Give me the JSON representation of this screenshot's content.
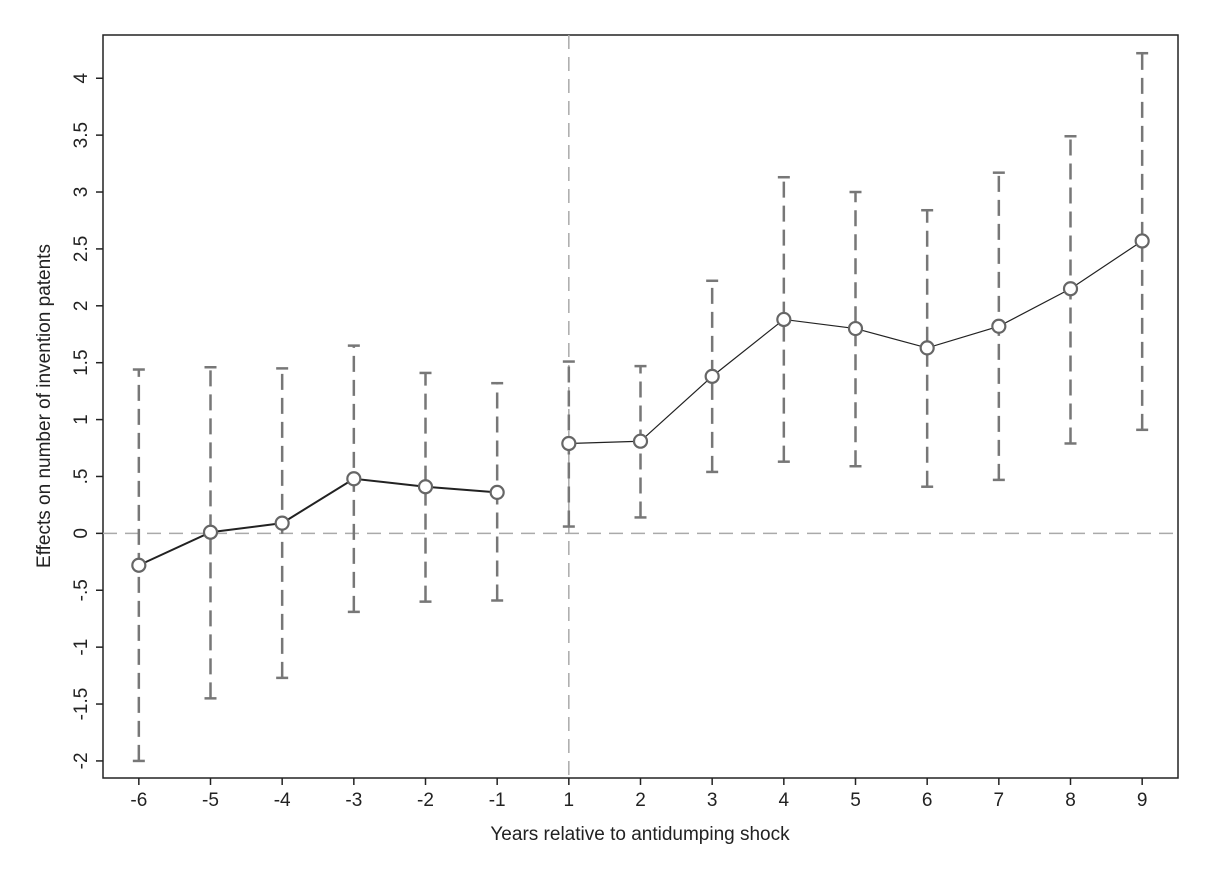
{
  "chart_data": {
    "type": "errorbar-line",
    "x_label": "Years relative to antidumping shock",
    "y_label": "Effects on number of invention patents",
    "categories": [
      "-6",
      "-5",
      "-4",
      "-3",
      "-2",
      "-1",
      "1",
      "2",
      "3",
      "4",
      "5",
      "6",
      "7",
      "8",
      "9"
    ],
    "series": [
      {
        "color": "#222222",
        "line_width": 2,
        "marker_color": "#666666",
        "errorbar_color": "#777777",
        "values": [
          -0.28,
          0.01,
          0.09,
          0.48,
          0.41,
          0.36,
          null,
          null,
          null,
          null,
          null,
          null,
          null,
          null,
          null
        ],
        "lower": [
          -2.0,
          -1.45,
          -1.27,
          -0.69,
          -0.6,
          -0.59,
          null,
          null,
          null,
          null,
          null,
          null,
          null,
          null,
          null
        ],
        "upper": [
          1.44,
          1.46,
          1.45,
          1.65,
          1.41,
          1.32,
          null,
          null,
          null,
          null,
          null,
          null,
          null,
          null,
          null
        ]
      },
      {
        "color": "#222222",
        "line_width": 1.2,
        "marker_color": "#666666",
        "errorbar_color": "#777777",
        "values": [
          null,
          null,
          null,
          null,
          null,
          null,
          0.79,
          0.81,
          1.38,
          1.88,
          1.8,
          1.63,
          1.82,
          2.15,
          2.57
        ],
        "lower": [
          null,
          null,
          null,
          null,
          null,
          null,
          0.06,
          0.14,
          0.54,
          0.63,
          0.59,
          0.41,
          0.47,
          0.79,
          0.91
        ],
        "upper": [
          null,
          null,
          null,
          null,
          null,
          null,
          1.51,
          1.47,
          2.22,
          3.13,
          3.0,
          2.84,
          3.17,
          3.49,
          4.22
        ]
      }
    ],
    "ylim": [
      -2.15,
      4.38
    ],
    "yticks": [
      -2,
      {
        "value": -1.5,
        "label": "-1.5"
      },
      -1,
      {
        "value": -0.5,
        "label": "-.5"
      },
      0,
      {
        "value": 0.5,
        "label": ".5"
      },
      1,
      1.5,
      2,
      2.5,
      3,
      3.5,
      4
    ],
    "reference_lines": {
      "y": 0,
      "x_category_index": 6,
      "color": "#aaaaaa"
    },
    "grid": false
  }
}
